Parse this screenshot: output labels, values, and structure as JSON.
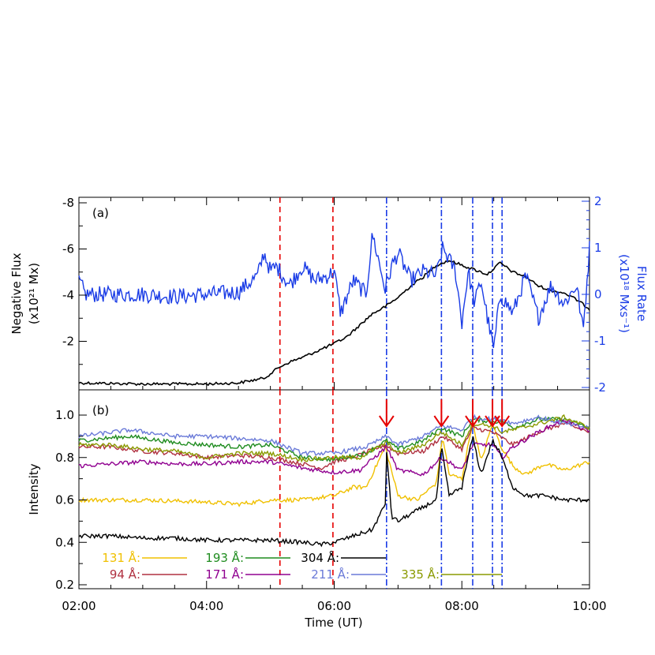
{
  "chart_data": [
    {
      "panel_label": "(a)",
      "type": "line",
      "ylabel": "Negative Flux",
      "ylabel_unit": "(x10²¹ Mx)",
      "ylabel_right": "Flux Rate",
      "ylabel_right_unit": "(x10¹⁸ Mxs⁻¹)",
      "y_ticks": [
        "-8",
        "-6",
        "-4",
        "-2"
      ],
      "y_ticks_right": [
        "2",
        "1",
        "0",
        "-1",
        "-2"
      ],
      "ylim": [
        0,
        -8
      ],
      "ylim_right": [
        -2,
        2
      ],
      "colors": {
        "flux": "#000000",
        "rate": "#1a3ce6",
        "red_lines": "#e60000",
        "blue_lines": "#1a3ce6"
      },
      "series": [
        {
          "key": "negative_flux",
          "axis": "left",
          "x": [
            2.0,
            3.0,
            4.0,
            4.5,
            4.9,
            5.0,
            5.15,
            5.3,
            5.5,
            5.75,
            6.0,
            6.2,
            6.4,
            6.6,
            6.8,
            7.0,
            7.2,
            7.4,
            7.6,
            7.8,
            8.0,
            8.2,
            8.4,
            8.6,
            8.8,
            9.0,
            9.2,
            9.4,
            9.6,
            9.8,
            10.0
          ],
          "y": [
            -0.2,
            -0.15,
            -0.15,
            -0.2,
            -0.4,
            -0.6,
            -0.9,
            -1.1,
            -1.3,
            -1.6,
            -1.9,
            -2.2,
            -2.7,
            -3.2,
            -3.5,
            -3.9,
            -4.4,
            -4.8,
            -5.3,
            -5.5,
            -5.3,
            -5.1,
            -4.9,
            -5.4,
            -5.0,
            -4.8,
            -4.4,
            -4.2,
            -4.1,
            -3.8,
            -3.4
          ]
        },
        {
          "key": "flux_rate",
          "axis": "right",
          "x": [
            2.0,
            2.1,
            2.5,
            3.0,
            3.5,
            4.0,
            4.5,
            4.8,
            4.9,
            5.0,
            5.1,
            5.3,
            5.5,
            5.7,
            5.9,
            6.0,
            6.1,
            6.3,
            6.5,
            6.6,
            6.8,
            6.9,
            7.0,
            7.2,
            7.4,
            7.6,
            7.7,
            7.9,
            8.0,
            8.1,
            8.2,
            8.3,
            8.4,
            8.5,
            8.6,
            8.8,
            9.0,
            9.2,
            9.4,
            9.6,
            9.8,
            9.9,
            10.0
          ],
          "y": [
            0.3,
            0.0,
            0.0,
            0.0,
            -0.05,
            0.0,
            0.05,
            0.4,
            0.9,
            0.5,
            0.6,
            0.2,
            0.6,
            0.3,
            0.4,
            0.5,
            -0.4,
            0.3,
            0.0,
            1.3,
            0.1,
            0.6,
            0.9,
            0.3,
            0.5,
            0.4,
            1.0,
            0.5,
            -0.6,
            0.5,
            -0.2,
            0.3,
            -0.5,
            -1.2,
            0.0,
            -0.4,
            0.4,
            -0.5,
            0.2,
            -0.2,
            0.2,
            -0.8,
            1.0
          ]
        }
      ],
      "vlines_red": [
        5.15,
        5.98
      ],
      "vlines_blue": [
        6.82,
        7.68,
        8.17,
        8.48,
        8.63
      ]
    },
    {
      "panel_label": "(b)",
      "type": "line",
      "xlabel": "Time (UT)",
      "ylabel": "Intensity",
      "x_ticks": [
        "02:00",
        "04:00",
        "06:00",
        "08:00",
        "10:00"
      ],
      "x_tick_values": [
        2,
        4,
        6,
        8,
        10
      ],
      "y_ticks": [
        "0.2",
        "0.4",
        "0.6",
        "0.8",
        "1.0"
      ],
      "ylim": [
        0.18,
        1.1
      ],
      "xlim": [
        2,
        10
      ],
      "arrows_at": [
        6.82,
        7.68,
        8.17,
        8.48,
        8.63
      ],
      "series": [
        {
          "name": "131 Å",
          "label": "131 Å:",
          "color": "#f0c000",
          "x": [
            2.0,
            3.0,
            4.0,
            4.5,
            5.0,
            5.5,
            6.0,
            6.3,
            6.5,
            6.8,
            7.0,
            7.3,
            7.6,
            7.7,
            7.8,
            8.0,
            8.17,
            8.3,
            8.48,
            8.6,
            8.8,
            9.0,
            9.3,
            9.6,
            10.0
          ],
          "y": [
            0.6,
            0.6,
            0.59,
            0.58,
            0.6,
            0.6,
            0.62,
            0.66,
            0.66,
            0.85,
            0.62,
            0.6,
            0.68,
            0.9,
            0.72,
            0.7,
            0.97,
            0.78,
            0.96,
            0.86,
            0.76,
            0.72,
            0.77,
            0.74,
            0.78
          ]
        },
        {
          "name": "94 Å",
          "label": "94 Å:",
          "color": "#b03040",
          "x": [
            2.0,
            2.5,
            3.0,
            3.5,
            4.0,
            4.5,
            5.0,
            5.5,
            5.8,
            6.0,
            6.3,
            6.8,
            7.0,
            7.4,
            7.7,
            8.0,
            8.17,
            8.48,
            8.8,
            9.2,
            9.6,
            10.0
          ],
          "y": [
            0.85,
            0.85,
            0.83,
            0.82,
            0.8,
            0.81,
            0.8,
            0.77,
            0.75,
            0.78,
            0.8,
            0.86,
            0.82,
            0.83,
            0.9,
            0.84,
            0.94,
            0.92,
            0.86,
            0.92,
            0.96,
            0.92
          ]
        },
        {
          "name": "193 Å",
          "label": "193 Å:",
          "color": "#1f8c1f",
          "x": [
            2.0,
            2.8,
            3.5,
            4.0,
            4.5,
            5.0,
            5.5,
            6.0,
            6.5,
            6.82,
            7.0,
            7.4,
            7.68,
            8.0,
            8.17,
            8.48,
            8.63,
            8.8,
            9.2,
            9.6,
            10.0
          ],
          "y": [
            0.88,
            0.9,
            0.87,
            0.86,
            0.85,
            0.86,
            0.8,
            0.79,
            0.82,
            0.88,
            0.84,
            0.88,
            0.94,
            0.9,
            0.98,
            0.97,
            0.97,
            0.94,
            0.98,
            0.98,
            0.94
          ]
        },
        {
          "name": "171 Å",
          "label": "171 Å:",
          "color": "#900090",
          "x": [
            2.0,
            2.5,
            3.0,
            3.5,
            4.0,
            4.5,
            5.0,
            5.5,
            6.0,
            6.4,
            6.82,
            7.0,
            7.4,
            7.68,
            8.0,
            8.17,
            8.48,
            8.63,
            8.8,
            9.2,
            9.6,
            10.0
          ],
          "y": [
            0.76,
            0.77,
            0.78,
            0.77,
            0.77,
            0.78,
            0.78,
            0.75,
            0.73,
            0.74,
            0.85,
            0.74,
            0.72,
            0.8,
            0.74,
            0.86,
            0.86,
            0.8,
            0.85,
            0.92,
            0.98,
            0.92
          ]
        },
        {
          "name": "304 Å",
          "label": "304 Å:",
          "color": "#000000",
          "x": [
            2.0,
            2.5,
            3.0,
            3.5,
            4.0,
            4.5,
            5.0,
            5.5,
            5.8,
            6.0,
            6.3,
            6.6,
            6.8,
            6.82,
            6.9,
            7.0,
            7.3,
            7.6,
            7.68,
            7.8,
            8.0,
            8.17,
            8.3,
            8.48,
            8.6,
            8.8,
            9.0,
            9.3,
            9.6,
            10.0
          ],
          "y": [
            0.43,
            0.43,
            0.42,
            0.42,
            0.41,
            0.41,
            0.41,
            0.4,
            0.39,
            0.4,
            0.43,
            0.46,
            0.58,
            0.84,
            0.52,
            0.5,
            0.55,
            0.6,
            0.85,
            0.62,
            0.66,
            0.9,
            0.72,
            0.88,
            0.82,
            0.66,
            0.62,
            0.62,
            0.6,
            0.6
          ]
        },
        {
          "name": "211 Å",
          "label": "211 Å:",
          "color": "#6a7ad8",
          "x": [
            2.0,
            2.8,
            3.5,
            4.0,
            4.5,
            5.0,
            5.5,
            6.0,
            6.5,
            6.82,
            7.0,
            7.4,
            7.68,
            8.0,
            8.17,
            8.48,
            8.63,
            8.8,
            9.2,
            9.6,
            10.0
          ],
          "y": [
            0.9,
            0.93,
            0.9,
            0.9,
            0.89,
            0.88,
            0.82,
            0.82,
            0.85,
            0.9,
            0.86,
            0.9,
            0.95,
            0.93,
            0.99,
            0.98,
            0.98,
            0.96,
            0.99,
            0.96,
            0.94
          ]
        },
        {
          "name": "335 Å",
          "label": "335 Å:",
          "color": "#8a9a00",
          "x": [
            2.0,
            2.5,
            3.0,
            3.5,
            4.0,
            4.5,
            5.0,
            5.5,
            6.0,
            6.4,
            6.82,
            7.0,
            7.4,
            7.68,
            8.0,
            8.17,
            8.48,
            8.63,
            8.8,
            9.2,
            9.6,
            10.0
          ],
          "y": [
            0.86,
            0.86,
            0.84,
            0.83,
            0.8,
            0.82,
            0.82,
            0.79,
            0.8,
            0.8,
            0.87,
            0.82,
            0.86,
            0.92,
            0.86,
            0.96,
            0.95,
            0.92,
            0.93,
            0.96,
            0.99,
            0.94
          ]
        }
      ],
      "vlines_red": [
        5.15,
        5.98
      ],
      "vlines_blue": [
        6.82,
        7.68,
        8.17,
        8.48,
        8.63
      ]
    }
  ]
}
